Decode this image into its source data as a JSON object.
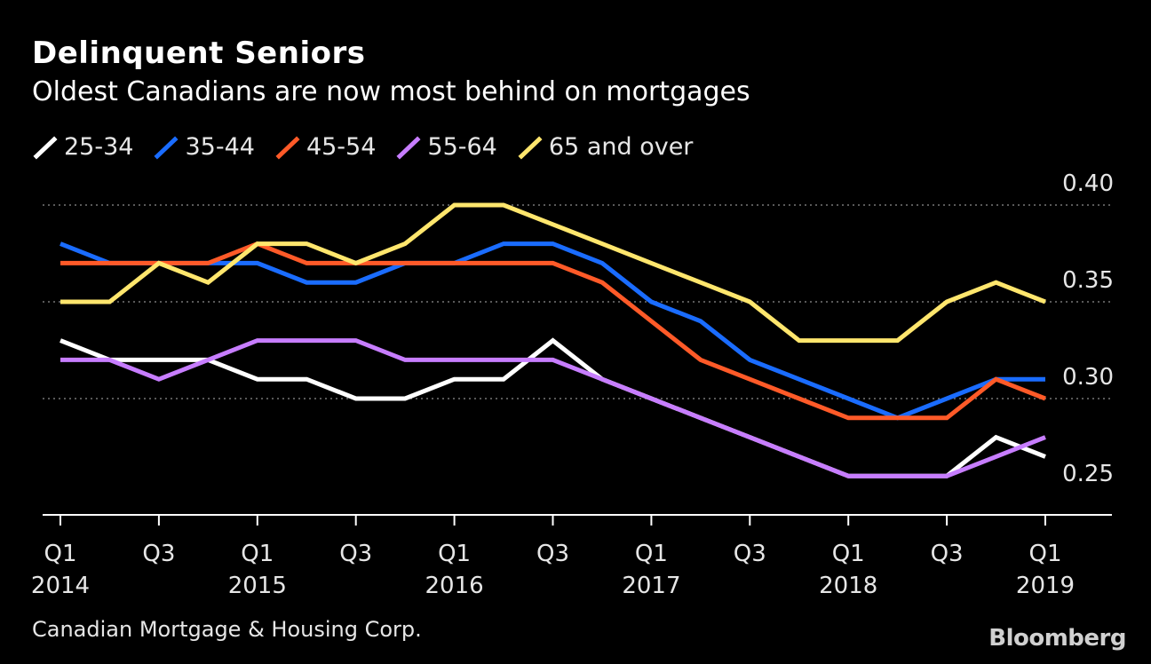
{
  "header": {
    "title": "Delinquent Seniors",
    "subtitle": "Oldest Canadians are now most behind on mortgages"
  },
  "footer": {
    "source": "Canadian Mortgage & Housing Corp.",
    "brand": "Bloomberg"
  },
  "chart_data": {
    "type": "line",
    "x": [
      "Q1 2014",
      "Q2 2014",
      "Q3 2014",
      "Q4 2014",
      "Q1 2015",
      "Q2 2015",
      "Q3 2015",
      "Q4 2015",
      "Q1 2016",
      "Q2 2016",
      "Q3 2016",
      "Q4 2016",
      "Q1 2017",
      "Q2 2017",
      "Q3 2017",
      "Q4 2017",
      "Q1 2018",
      "Q2 2018",
      "Q3 2018",
      "Q4 2018",
      "Q1 2019"
    ],
    "x_tick_labels": [
      {
        "index": 0,
        "line1": "Q1",
        "line2": "2014"
      },
      {
        "index": 2,
        "line1": "Q3",
        "line2": ""
      },
      {
        "index": 4,
        "line1": "Q1",
        "line2": "2015"
      },
      {
        "index": 6,
        "line1": "Q3",
        "line2": ""
      },
      {
        "index": 8,
        "line1": "Q1",
        "line2": "2016"
      },
      {
        "index": 10,
        "line1": "Q3",
        "line2": ""
      },
      {
        "index": 12,
        "line1": "Q1",
        "line2": "2017"
      },
      {
        "index": 14,
        "line1": "Q3",
        "line2": ""
      },
      {
        "index": 16,
        "line1": "Q1",
        "line2": "2018"
      },
      {
        "index": 18,
        "line1": "Q3",
        "line2": ""
      },
      {
        "index": 20,
        "line1": "Q1",
        "line2": "2019"
      }
    ],
    "y_ticks": [
      {
        "value": 0.25,
        "label": "0.25"
      },
      {
        "value": 0.3,
        "label": "0.30"
      },
      {
        "value": 0.35,
        "label": "0.35"
      },
      {
        "value": 0.4,
        "label": "0.40"
      }
    ],
    "ylim": [
      0.24,
      0.41
    ],
    "grid": "dotted horizontal",
    "legend_position": "top",
    "series": [
      {
        "name": "25-34",
        "color": "#ffffff",
        "values": [
          0.33,
          0.32,
          0.32,
          0.32,
          0.31,
          0.31,
          0.3,
          0.3,
          0.31,
          0.31,
          0.33,
          0.31,
          0.3,
          0.29,
          0.28,
          0.27,
          0.26,
          0.26,
          0.26,
          0.28,
          0.27
        ]
      },
      {
        "name": "35-44",
        "color": "#1a6cff",
        "values": [
          0.38,
          0.37,
          0.37,
          0.37,
          0.37,
          0.36,
          0.36,
          0.37,
          0.37,
          0.38,
          0.38,
          0.37,
          0.35,
          0.34,
          0.32,
          0.31,
          0.3,
          0.29,
          0.3,
          0.31,
          0.31
        ]
      },
      {
        "name": "45-54",
        "color": "#ff5a28",
        "values": [
          0.37,
          0.37,
          0.37,
          0.37,
          0.38,
          0.37,
          0.37,
          0.37,
          0.37,
          0.37,
          0.37,
          0.36,
          0.34,
          0.32,
          0.31,
          0.3,
          0.29,
          0.29,
          0.29,
          0.31,
          0.3
        ]
      },
      {
        "name": "55-64",
        "color": "#c77dff",
        "values": [
          0.32,
          0.32,
          0.31,
          0.32,
          0.33,
          0.33,
          0.33,
          0.32,
          0.32,
          0.32,
          0.32,
          0.31,
          0.3,
          0.29,
          0.28,
          0.27,
          0.26,
          0.26,
          0.26,
          0.27,
          0.28
        ]
      },
      {
        "name": "65 and over",
        "color": "#ffe66d",
        "values": [
          0.35,
          0.35,
          0.37,
          0.36,
          0.38,
          0.38,
          0.37,
          0.38,
          0.4,
          0.4,
          0.39,
          0.38,
          0.37,
          0.36,
          0.35,
          0.33,
          0.33,
          0.33,
          0.35,
          0.36,
          0.35
        ]
      }
    ]
  }
}
